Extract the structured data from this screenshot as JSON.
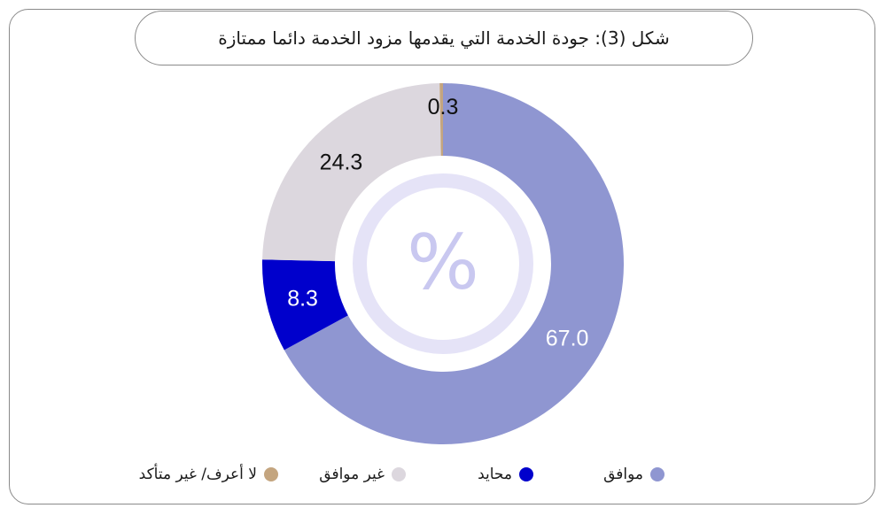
{
  "chart_data": {
    "type": "pie",
    "title": "شكل (3): جودة الخدمة التي يقدمها مزود الخدمة دائما ممتازة",
    "center_symbol": "%",
    "slices": [
      {
        "label": "موافق",
        "value": 67.0,
        "value_label": "67.0",
        "color": "#8f96d1",
        "label_color": "#ffffff"
      },
      {
        "label": "محايد",
        "value": 8.3,
        "value_label": "8.3",
        "color": "#0000cc",
        "label_color": "#ffffff"
      },
      {
        "label": "غير موافق",
        "value": 24.3,
        "value_label": "24.3",
        "color": "#dcd7de",
        "label_color": "#111111"
      },
      {
        "label": "لا أعرف/ غير متأكد",
        "value": 0.3,
        "value_label": "0.3",
        "color": "#c4a57f",
        "label_color": "#111111"
      }
    ],
    "legend_position": "bottom"
  },
  "colors": {
    "inner_ring": "#e5e3f7",
    "inner_symbol": "#c9c8f0"
  }
}
